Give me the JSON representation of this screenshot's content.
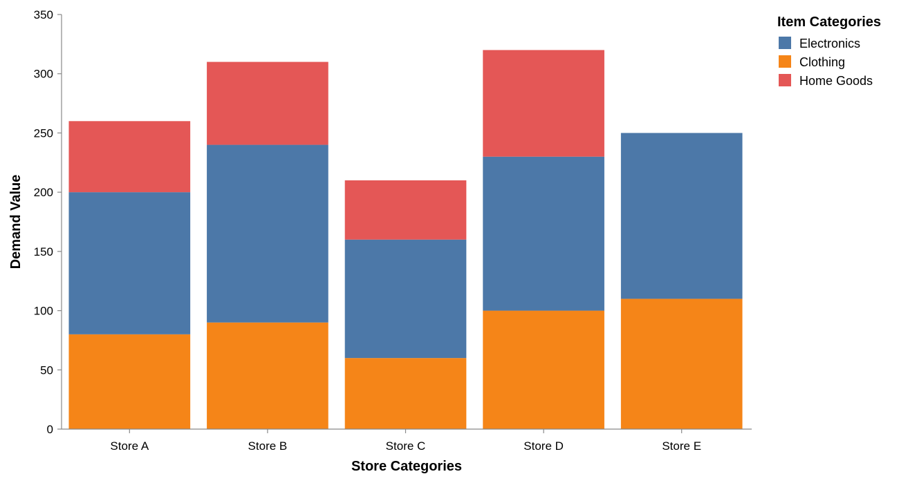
{
  "chart_data": {
    "type": "bar",
    "stacked": true,
    "categories": [
      "Store A",
      "Store B",
      "Store C",
      "Store D",
      "Store E"
    ],
    "series": [
      {
        "name": "Clothing",
        "values": [
          80,
          90,
          60,
          100,
          110
        ],
        "color": "#f58518"
      },
      {
        "name": "Electronics",
        "values": [
          120,
          150,
          100,
          130,
          140
        ],
        "color": "#4c78a8"
      },
      {
        "name": "Home Goods",
        "values": [
          60,
          70,
          50,
          90,
          0
        ],
        "color": "#e45756"
      }
    ],
    "xlabel": "Store Categories",
    "ylabel": "Demand Value",
    "ylim": [
      0,
      350
    ],
    "yticks": [
      0,
      50,
      100,
      150,
      200,
      250,
      300,
      350
    ],
    "grid": false,
    "legend": {
      "title": "Item Categories",
      "placement": "right",
      "entries": [
        {
          "label": "Electronics",
          "color": "#4c78a8"
        },
        {
          "label": "Clothing",
          "color": "#f58518"
        },
        {
          "label": "Home Goods",
          "color": "#e45756"
        }
      ]
    }
  }
}
